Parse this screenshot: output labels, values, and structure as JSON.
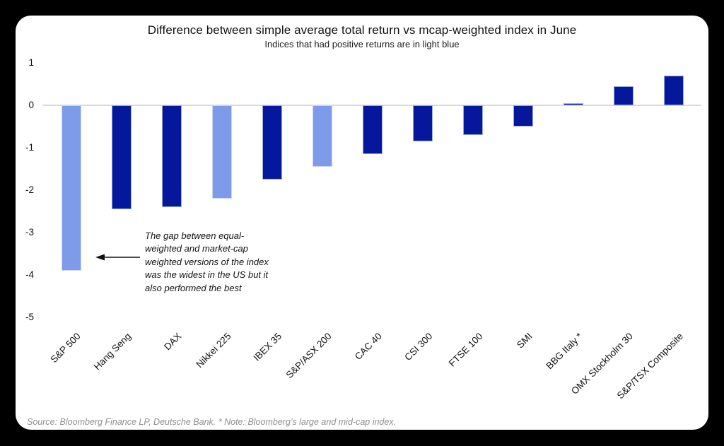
{
  "page": {
    "background_color": "#000000",
    "card_background": "#ffffff"
  },
  "header": {
    "title": "Difference between simple average total return vs mcap-weighted index in June",
    "subtitle": "Indices that had positive returns are in light blue"
  },
  "chart_data": {
    "type": "bar",
    "title": "Difference between simple average total return vs mcap-weighted index in June",
    "subtitle": "Indices that had positive returns are in light blue",
    "categories": [
      "S&P 500",
      "Hang Seng",
      "DAX",
      "Nikkei 225",
      "IBEX 35",
      "S&P/ASX 200",
      "CAC 40",
      "CSI 300",
      "FTSE 100",
      "SMI",
      "BBG Italy *",
      "OMX Stockholm 30",
      "S&P/TSX Composite"
    ],
    "values": [
      -3.9,
      -2.45,
      -2.4,
      -2.2,
      -1.75,
      -1.45,
      -1.15,
      -0.85,
      -0.7,
      -0.5,
      0.05,
      0.45,
      0.7
    ],
    "bars": [
      {
        "label": "S&P 500",
        "value": -3.9,
        "positive_return_light_blue": true
      },
      {
        "label": "Hang Seng",
        "value": -2.45,
        "positive_return_light_blue": false
      },
      {
        "label": "DAX",
        "value": -2.4,
        "positive_return_light_blue": false
      },
      {
        "label": "Nikkei 225",
        "value": -2.2,
        "positive_return_light_blue": true
      },
      {
        "label": "IBEX 35",
        "value": -1.75,
        "positive_return_light_blue": false
      },
      {
        "label": "S&P/ASX 200",
        "value": -1.45,
        "positive_return_light_blue": true
      },
      {
        "label": "CAC 40",
        "value": -1.15,
        "positive_return_light_blue": false
      },
      {
        "label": "CSI 300",
        "value": -0.85,
        "positive_return_light_blue": false
      },
      {
        "label": "FTSE 100",
        "value": -0.7,
        "positive_return_light_blue": false
      },
      {
        "label": "SMI",
        "value": -0.5,
        "positive_return_light_blue": false
      },
      {
        "label": "BBG Italy *",
        "value": 0.05,
        "positive_return_light_blue": false
      },
      {
        "label": "OMX Stockholm 30",
        "value": 0.45,
        "positive_return_light_blue": false
      },
      {
        "label": "S&P/TSX Composite",
        "value": 0.7,
        "positive_return_light_blue": false
      }
    ],
    "yticks": [
      1,
      0,
      -1,
      -2,
      -3,
      -4,
      -5
    ],
    "ylim": [
      -5,
      1
    ],
    "xlabel": "",
    "ylabel": "",
    "grid": "zero-line-only",
    "legend": "none",
    "colors": {
      "dark_blue": "#05189c",
      "light_blue": "#7d9be8",
      "dark_blue_border": "#9aa9dd",
      "light_blue_border": "#cad5f2",
      "zero_line": "#d9d9d9"
    },
    "annotation": {
      "text": "The gap between equal-\nweighted and market-cap\nweighted versions of the index\nwas the widest in the US but it\nalso performed the best",
      "arrow_points_to": "S&P 500 bar"
    }
  },
  "footer": {
    "source_note": "Source: Bloomberg Finance LP, Deutsche Bank. * Note: Bloomberg’s large and mid-cap index."
  }
}
